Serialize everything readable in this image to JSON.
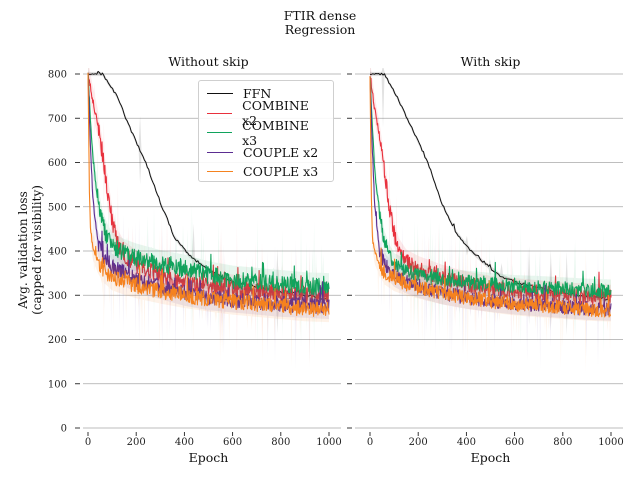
{
  "figure": {
    "title_line1": "FTIR dense",
    "title_line2": "Regression",
    "ylabel_line1": "Avg. validation loss",
    "ylabel_line2": "(capped for visibility)"
  },
  "chart_data": [
    {
      "type": "line",
      "title": "Without skip",
      "xlabel": "Epoch",
      "ylabel": "Avg. validation loss (capped for visibility)",
      "xlim": [
        0,
        1000
      ],
      "ylim": [
        0,
        800
      ],
      "xticks": [
        0,
        200,
        400,
        600,
        800,
        1000
      ],
      "yticks": [
        0,
        100,
        200,
        300,
        400,
        500,
        600,
        700,
        800
      ],
      "grid": "horizontal",
      "legend_position": "top-right",
      "series": [
        {
          "name": "FFN",
          "color": "#111111",
          "x": [
            0,
            60,
            120,
            180,
            240,
            300,
            360,
            420,
            480,
            540,
            600,
            660,
            720,
            780,
            840,
            900,
            960,
            1000
          ],
          "y": [
            800,
            800,
            750,
            670,
            600,
            510,
            430,
            390,
            365,
            345,
            330,
            325,
            318,
            310,
            305,
            300,
            295,
            290
          ],
          "noise": 3
        },
        {
          "name": "COMBINE x2",
          "color": "#e8313d",
          "x": [
            0,
            20,
            40,
            60,
            80,
            100,
            120,
            150,
            200,
            300,
            400,
            500,
            600,
            700,
            800,
            900,
            1000
          ],
          "y": [
            800,
            740,
            690,
            620,
            540,
            470,
            420,
            390,
            370,
            345,
            330,
            320,
            315,
            310,
            305,
            302,
            300
          ],
          "noise": 20
        },
        {
          "name": "COMBINE x3",
          "color": "#10a35c",
          "x": [
            0,
            10,
            20,
            40,
            60,
            80,
            100,
            150,
            200,
            300,
            400,
            500,
            600,
            700,
            800,
            900,
            1000
          ],
          "y": [
            800,
            700,
            610,
            520,
            460,
            430,
            410,
            395,
            385,
            370,
            360,
            345,
            335,
            330,
            325,
            320,
            318
          ],
          "noise": 20
        },
        {
          "name": "COUPLE x2",
          "color": "#5b2d91",
          "x": [
            0,
            10,
            20,
            40,
            60,
            100,
            150,
            200,
            300,
            400,
            500,
            600,
            700,
            800,
            900,
            1000
          ],
          "y": [
            800,
            640,
            520,
            420,
            390,
            365,
            350,
            335,
            320,
            305,
            295,
            290,
            285,
            280,
            278,
            275
          ],
          "noise": 18
        },
        {
          "name": "COUPLE x3",
          "color": "#f5821f",
          "x": [
            0,
            5,
            10,
            20,
            40,
            60,
            100,
            150,
            200,
            300,
            400,
            500,
            600,
            700,
            800,
            900,
            1000
          ],
          "y": [
            800,
            560,
            450,
            410,
            380,
            360,
            340,
            330,
            322,
            310,
            300,
            292,
            285,
            280,
            275,
            270,
            268
          ],
          "noise": 18
        }
      ]
    },
    {
      "type": "line",
      "title": "With skip",
      "xlabel": "Epoch",
      "xlim": [
        0,
        1000
      ],
      "ylim": [
        0,
        800
      ],
      "xticks": [
        0,
        200,
        400,
        600,
        800,
        1000
      ],
      "yticks": [
        0,
        100,
        200,
        300,
        400,
        500,
        600,
        700,
        800
      ],
      "grid": "horizontal",
      "series": [
        {
          "name": "FFN",
          "color": "#111111",
          "x": [
            0,
            60,
            120,
            180,
            240,
            300,
            360,
            420,
            480,
            540,
            600,
            660,
            720,
            780,
            840,
            900,
            960,
            1000
          ],
          "y": [
            800,
            800,
            740,
            670,
            600,
            505,
            440,
            400,
            370,
            345,
            330,
            322,
            315,
            308,
            302,
            298,
            293,
            290
          ],
          "noise": 3
        },
        {
          "name": "COMBINE x2",
          "color": "#e8313d",
          "x": [
            0,
            20,
            40,
            60,
            80,
            100,
            120,
            150,
            200,
            300,
            400,
            500,
            600,
            700,
            800,
            900,
            1000
          ],
          "y": [
            800,
            720,
            660,
            580,
            500,
            440,
            400,
            375,
            360,
            340,
            325,
            315,
            310,
            305,
            300,
            298,
            295
          ],
          "noise": 18
        },
        {
          "name": "COMBINE x3",
          "color": "#10a35c",
          "x": [
            0,
            10,
            20,
            40,
            60,
            80,
            100,
            150,
            200,
            300,
            400,
            500,
            600,
            700,
            800,
            900,
            1000
          ],
          "y": [
            800,
            680,
            580,
            480,
            420,
            390,
            370,
            355,
            345,
            335,
            330,
            325,
            320,
            318,
            315,
            312,
            310
          ],
          "noise": 16
        },
        {
          "name": "COUPLE x2",
          "color": "#5b2d91",
          "x": [
            0,
            10,
            20,
            40,
            60,
            100,
            150,
            200,
            300,
            400,
            500,
            600,
            700,
            800,
            900,
            1000
          ],
          "y": [
            800,
            620,
            500,
            400,
            370,
            345,
            330,
            320,
            305,
            295,
            288,
            282,
            278,
            274,
            270,
            268
          ],
          "noise": 16
        },
        {
          "name": "COUPLE x3",
          "color": "#f5821f",
          "x": [
            0,
            5,
            10,
            20,
            40,
            60,
            100,
            150,
            200,
            300,
            400,
            500,
            600,
            700,
            800,
            900,
            1000
          ],
          "y": [
            800,
            540,
            430,
            395,
            370,
            350,
            335,
            325,
            318,
            305,
            295,
            287,
            280,
            276,
            272,
            268,
            266
          ],
          "noise": 16
        }
      ]
    }
  ]
}
